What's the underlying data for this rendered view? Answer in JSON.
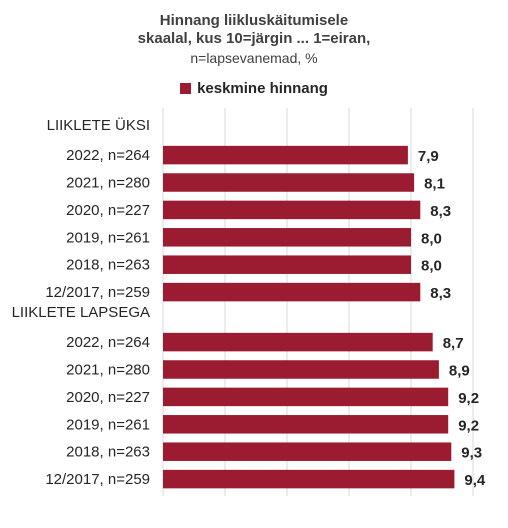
{
  "chart_data": {
    "type": "bar",
    "orientation": "horizontal",
    "title_lines": [
      "Hinnang liikluskäitumisele",
      "skaalal, kus 10=järgin ... 1=eiran,"
    ],
    "subtitle": "n=lapsevanemad,  %",
    "legend": [
      "keskmine hinnang"
    ],
    "bar_color": "#9b1b30",
    "grid": true,
    "groups": [
      {
        "label": "LIIKLETE ÜKSI",
        "categories": [
          "2022, n=264",
          "2021, n=280",
          "2020, n=227",
          "2019, n=261",
          "2018, n=263",
          "12/2017, n=259"
        ],
        "values": [
          7.9,
          8.1,
          8.3,
          8.0,
          8.0,
          8.3
        ],
        "value_labels": [
          "7,9",
          "8,1",
          "8,3",
          "8,0",
          "8,0",
          "8,3"
        ]
      },
      {
        "label": "LIIKLETE LAPSEGA",
        "categories": [
          "2022, n=264",
          "2021, n=280",
          "2020, n=227",
          "2019, n=261",
          "2018, n=263",
          "12/2017, n=259"
        ],
        "values": [
          8.7,
          8.9,
          9.2,
          9.2,
          9.3,
          9.4
        ],
        "value_labels": [
          "8,7",
          "8,9",
          "9,2",
          "9,2",
          "9,3",
          "9,4"
        ]
      }
    ],
    "xlim": [
      0,
      10
    ]
  }
}
